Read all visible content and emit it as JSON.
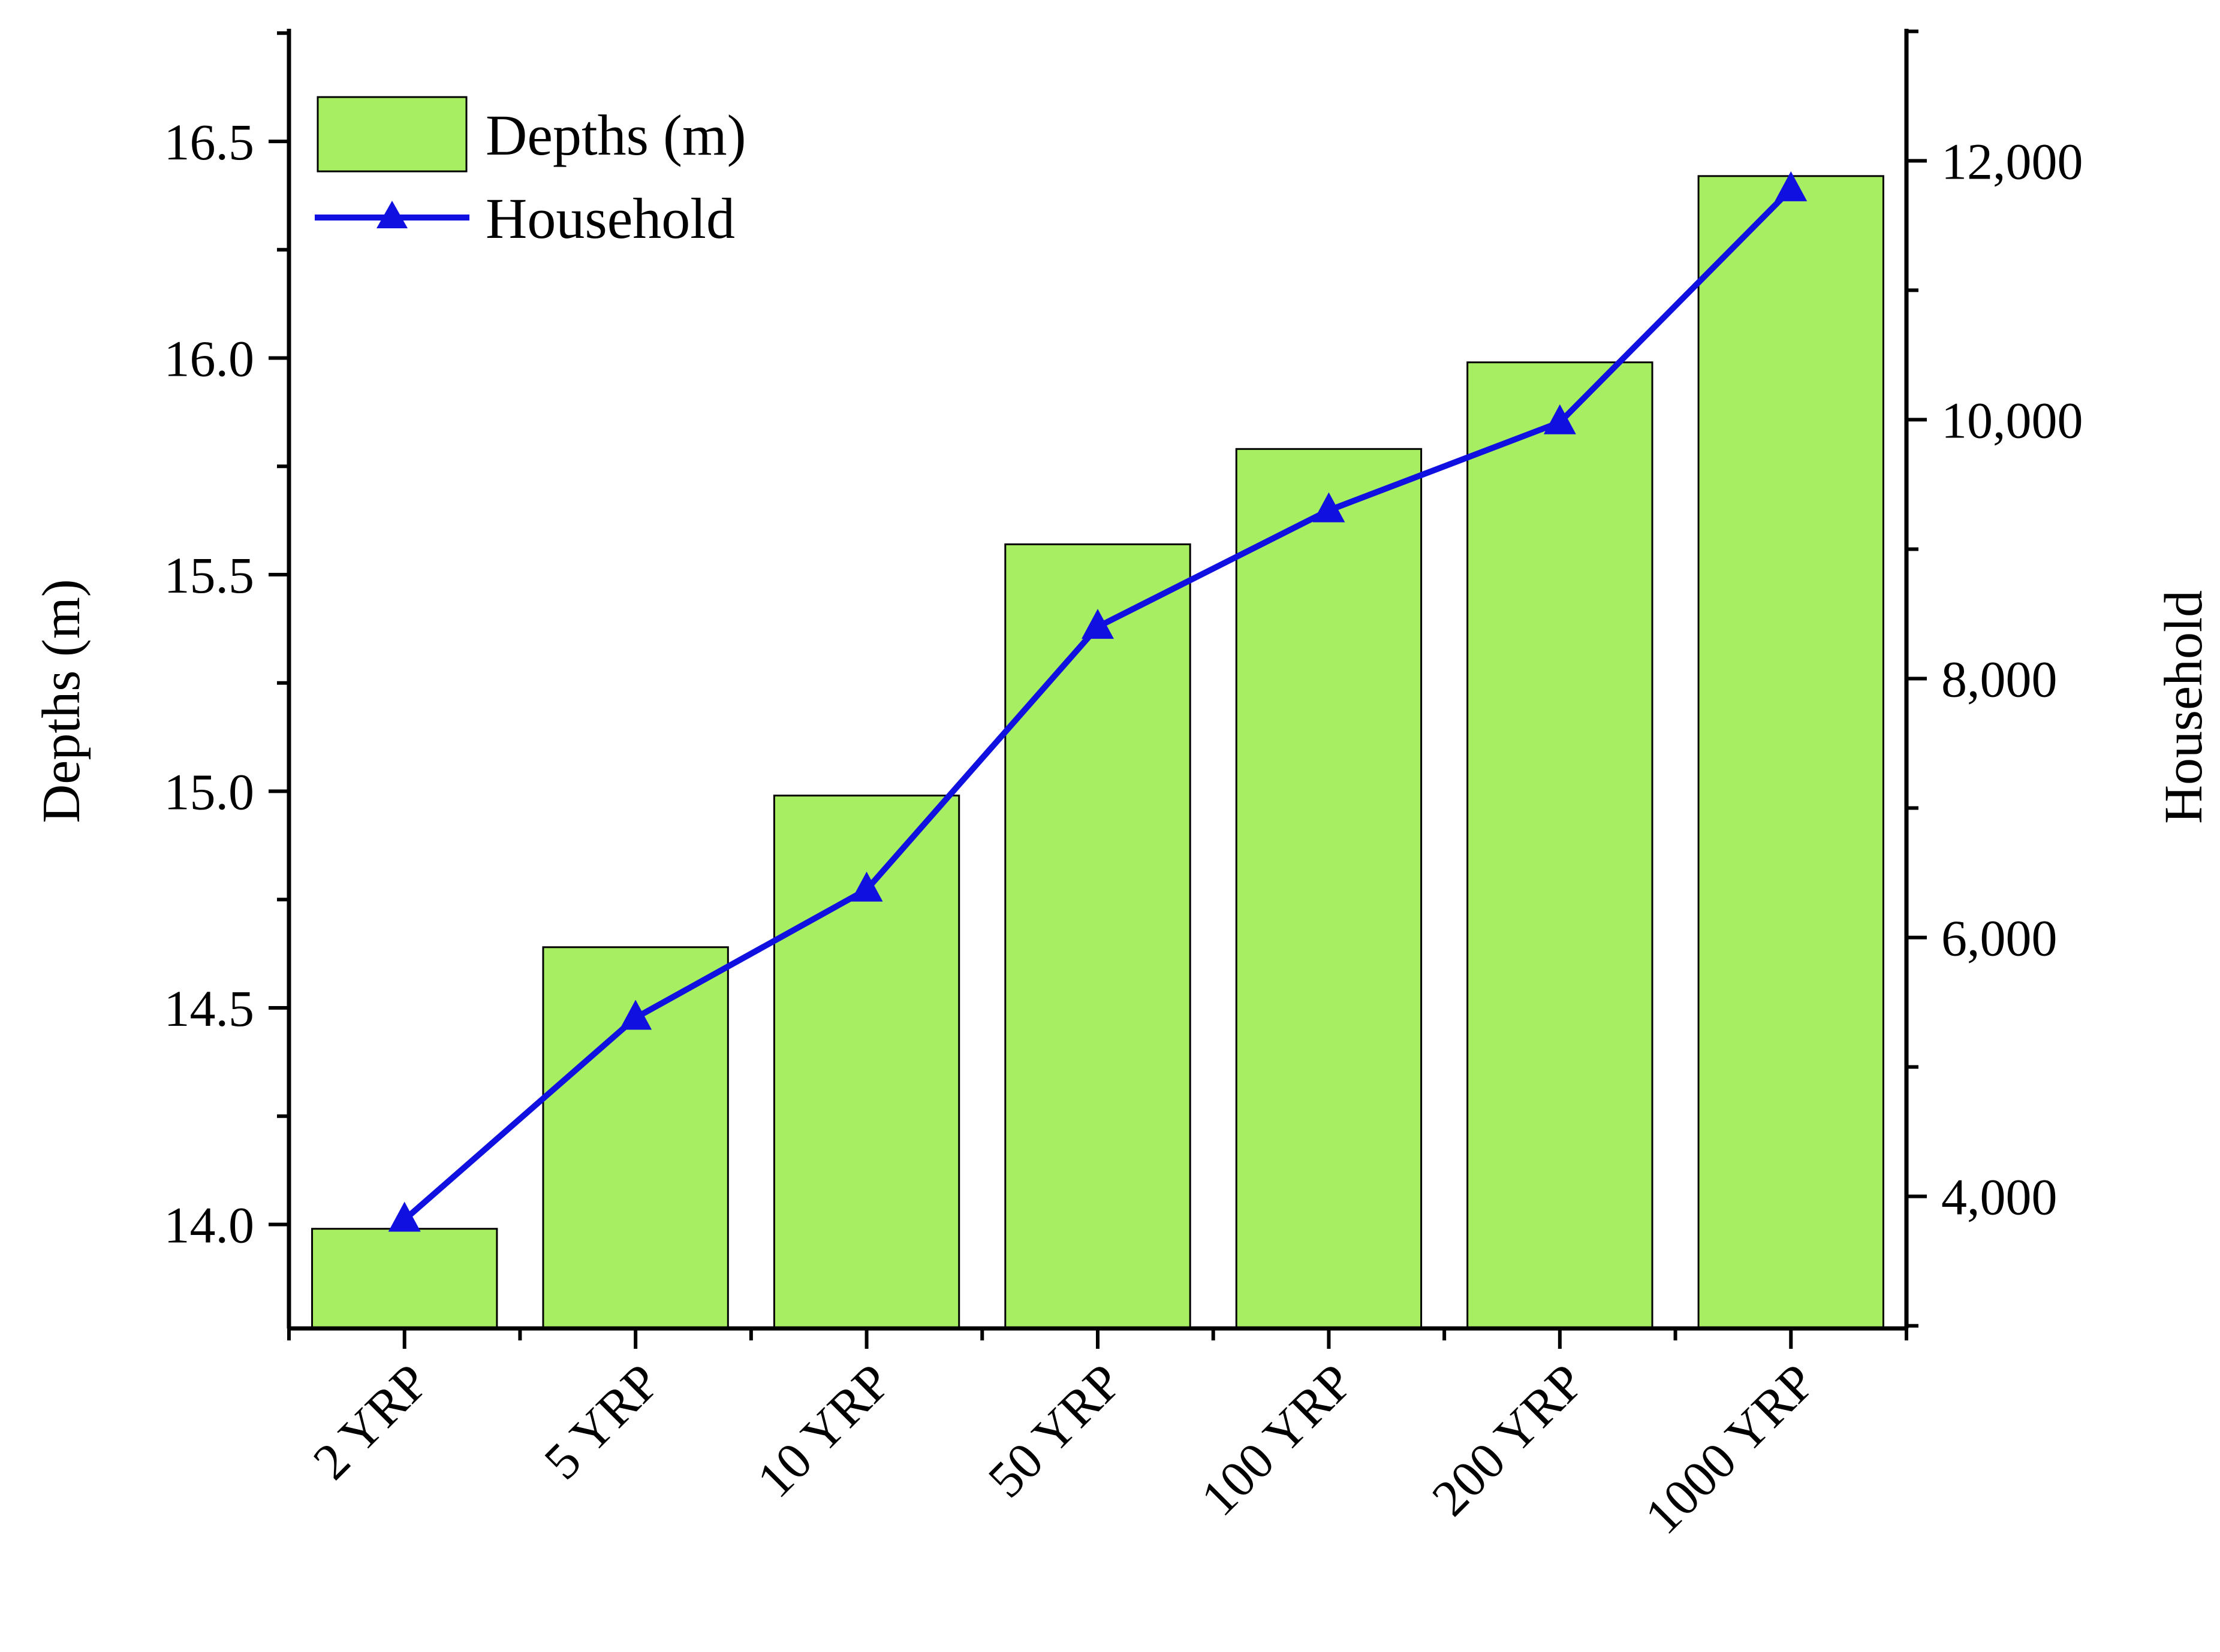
{
  "chart_data": {
    "type": "bar",
    "categories": [
      "2 YRP",
      "5 YRP",
      "10 YRP",
      "50 YRP",
      "100 YRP",
      "200 YRP",
      "1000 YRP"
    ],
    "series": [
      {
        "name": "Depths (m)",
        "type": "bar",
        "axis": "left",
        "color": "#a8ee62",
        "values": [
          13.99,
          14.64,
          14.99,
          15.57,
          15.79,
          15.99,
          16.42
        ]
      },
      {
        "name": "Household",
        "type": "line",
        "axis": "right",
        "color": "#1010e0",
        "marker": "triangle",
        "values": [
          3820,
          5380,
          6370,
          8400,
          9300,
          9980,
          11780
        ]
      }
    ],
    "ylabel": "Depths (m)",
    "ylabel_right": "Household",
    "ylim": [
      13.76,
      16.76
    ],
    "ylim_right": [
      2980,
      13020
    ],
    "yticks": [
      "14.0",
      "14.5",
      "15.0",
      "15.5",
      "16.0",
      "16.5"
    ],
    "yticks_right": [
      "4,000",
      "6,000",
      "8,000",
      "10,000",
      "12,000"
    ],
    "grid": false,
    "legend_position": "top-left"
  }
}
